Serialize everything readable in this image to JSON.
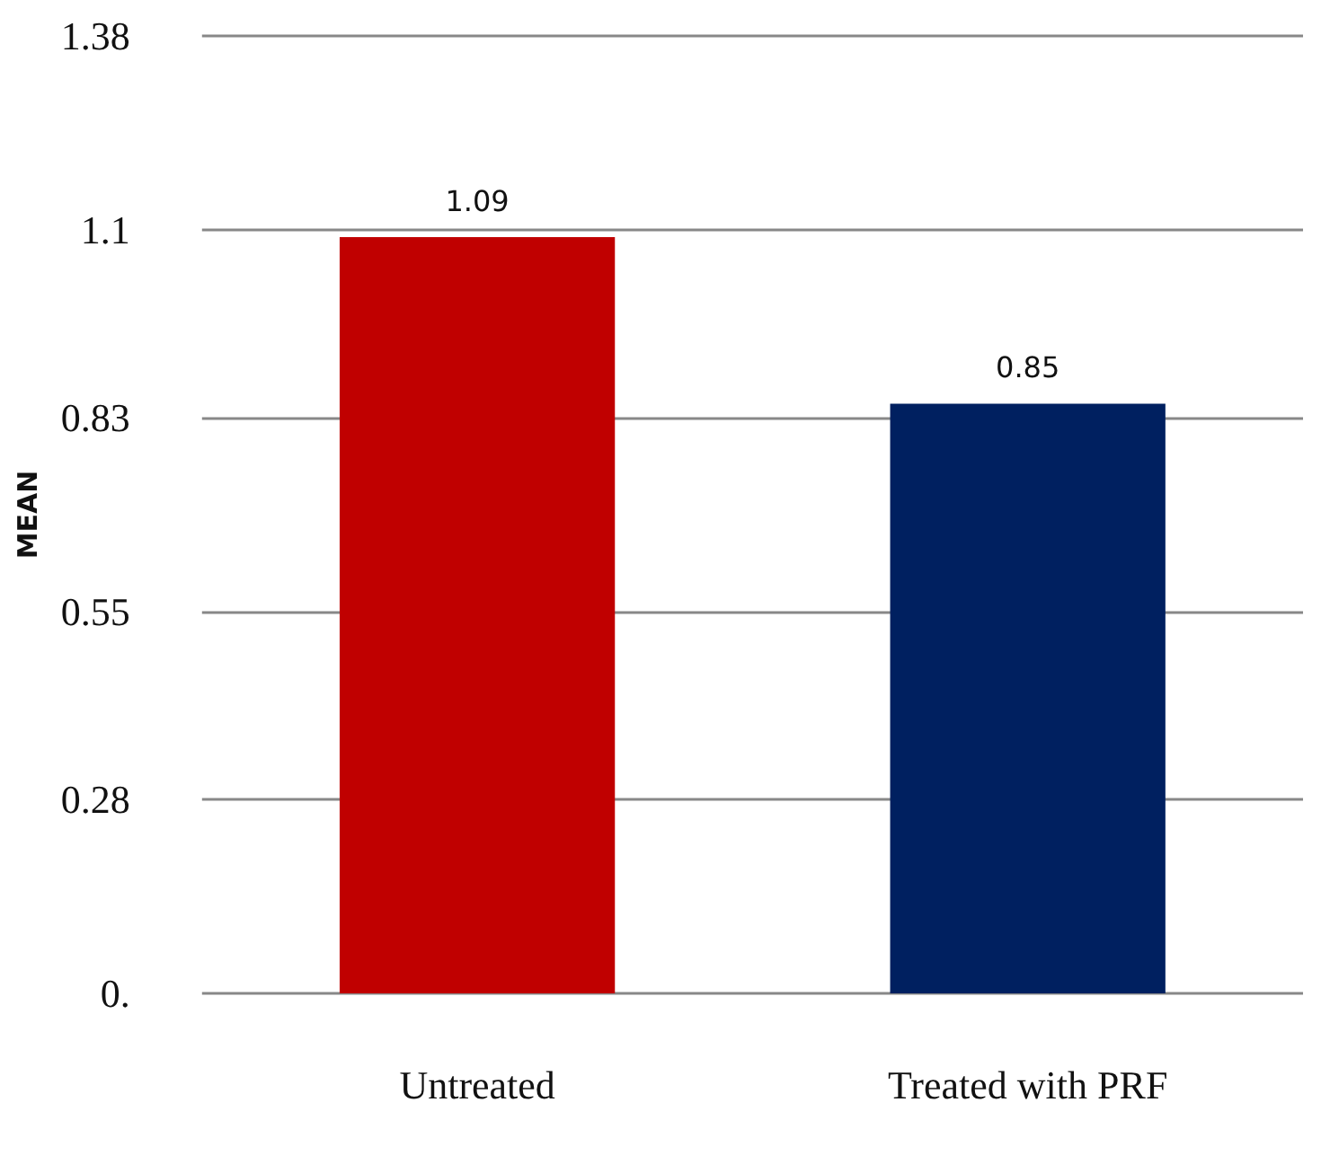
{
  "chart_data": {
    "type": "bar",
    "ylabel": "MEAN",
    "categories": [
      "Untreated",
      "Treated with PRF"
    ],
    "values": [
      1.09,
      0.85
    ],
    "colors": [
      "#c00000",
      "#002060"
    ],
    "ylim": [
      0,
      1.38
    ],
    "yticks": [
      {
        "value": 0,
        "label": "0."
      },
      0.28,
      0.55,
      0.83,
      1.1,
      1.38
    ],
    "grid": "y",
    "data_labels": true
  }
}
